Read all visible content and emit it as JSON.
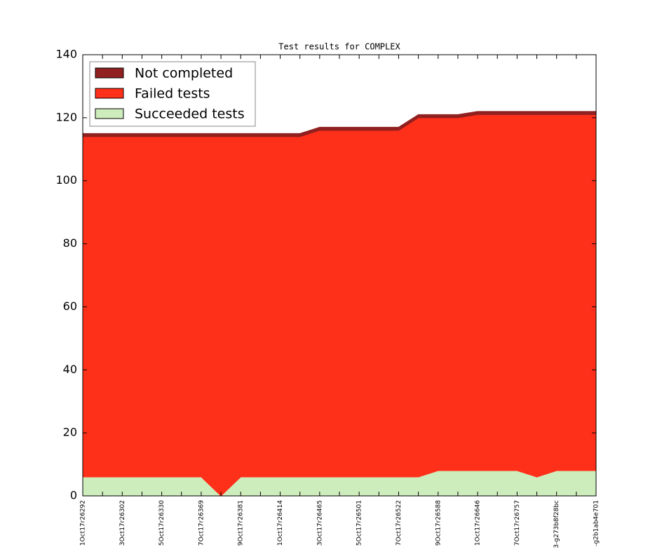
{
  "chart_data": {
    "type": "stacked_area",
    "title": "Test results for COMPLEX",
    "categories": [
      "1Oct17r26292",
      null,
      "3Oct17r26302",
      null,
      "5Oct17r26330",
      null,
      "7Oct17r26369",
      null,
      "9Oct17r26381",
      null,
      "1Oct17r26414",
      null,
      "3Oct17r26465",
      null,
      "5Oct17r26501",
      null,
      "7Oct17r26522",
      null,
      "9Oct17r26588",
      null,
      "1Oct17r26646",
      null,
      "7Oct17r26757",
      null,
      "3-g273b8f28bc",
      null,
      "-g2b1ab4e701"
    ],
    "series": [
      {
        "name": "Succeeded tests",
        "color": "#ceedbd",
        "values": [
          6,
          6,
          6,
          6,
          6,
          6,
          6,
          0,
          6,
          6,
          6,
          6,
          6,
          6,
          6,
          6,
          6,
          6,
          8,
          8,
          8,
          8,
          8,
          6,
          8,
          8,
          8
        ]
      },
      {
        "name": "Failed tests",
        "color": "#ff3019",
        "values": [
          108,
          108,
          108,
          108,
          108,
          108,
          108,
          114,
          108,
          108,
          108,
          108,
          110,
          110,
          110,
          110,
          110,
          114,
          112,
          112,
          113,
          113,
          113,
          115,
          113,
          113,
          113
        ]
      },
      {
        "name": "Not completed",
        "color": "#912020",
        "values": [
          1,
          1,
          1,
          1,
          1,
          1,
          1,
          1,
          1,
          1,
          1,
          1,
          1,
          1,
          1,
          1,
          1,
          1,
          1,
          1,
          1,
          1,
          1,
          1,
          1,
          1,
          1
        ]
      }
    ],
    "ylim": [
      0,
      140
    ],
    "yticks": [
      0,
      20,
      40,
      60,
      80,
      100,
      120,
      140
    ],
    "legend": "upper left"
  }
}
